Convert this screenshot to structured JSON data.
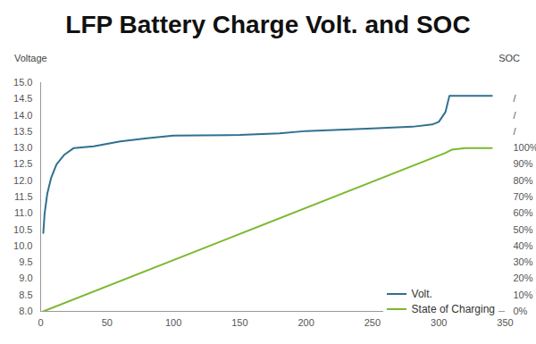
{
  "chart_data": {
    "type": "line",
    "title": "LFP Battery Charge Volt. and SOC",
    "y_label": "Voltage",
    "y2_label": "SOC",
    "xlim": [
      0,
      350
    ],
    "xticks": [
      0,
      50,
      100,
      150,
      200,
      250,
      300,
      350
    ],
    "ylim": [
      8,
      15
    ],
    "yticks": [
      {
        "value": 8,
        "label": "8.0"
      },
      {
        "value": 8.5,
        "label": "8.5"
      },
      {
        "value": 9,
        "label": "9.0"
      },
      {
        "value": 9.5,
        "label": "9.5"
      },
      {
        "value": 10,
        "label": "10.0"
      },
      {
        "value": 10.5,
        "label": "10.5"
      },
      {
        "value": 11,
        "label": "11.0"
      },
      {
        "value": 11.5,
        "label": "11.5"
      },
      {
        "value": 12,
        "label": "12.0"
      },
      {
        "value": 12.5,
        "label": "12.5"
      },
      {
        "value": 13,
        "label": "13.0"
      },
      {
        "value": 13.5,
        "label": "13.5"
      },
      {
        "value": 14,
        "label": "14.0"
      },
      {
        "value": 14.5,
        "label": "14.5"
      },
      {
        "value": 15,
        "label": "15.0"
      }
    ],
    "y2lim": [
      0,
      140
    ],
    "y2ticks": [
      {
        "value": 0,
        "label": "0%"
      },
      {
        "value": 10,
        "label": "10%"
      },
      {
        "value": 20,
        "label": "20%"
      },
      {
        "value": 30,
        "label": "30%"
      },
      {
        "value": 40,
        "label": "40%"
      },
      {
        "value": 50,
        "label": "50%"
      },
      {
        "value": 60,
        "label": "60%"
      },
      {
        "value": 70,
        "label": "70%"
      },
      {
        "value": 80,
        "label": "80%"
      },
      {
        "value": 90,
        "label": "90%"
      },
      {
        "value": 100,
        "label": "100%"
      },
      {
        "value": 110,
        "label": "/"
      },
      {
        "value": 120,
        "label": "/"
      },
      {
        "value": 130,
        "label": "/"
      }
    ],
    "grid": false,
    "legend": "bottom-right",
    "series": [
      {
        "name": "Volt.",
        "color": "#31708f",
        "x": [
          2,
          3,
          5,
          8,
          12,
          18,
          25,
          40,
          60,
          80,
          100,
          150,
          180,
          200,
          250,
          280,
          295,
          300,
          305,
          308,
          340
        ],
        "values": [
          10.4,
          11.0,
          11.6,
          12.1,
          12.5,
          12.8,
          13.0,
          13.05,
          13.2,
          13.3,
          13.38,
          13.4,
          13.45,
          13.52,
          13.6,
          13.65,
          13.72,
          13.8,
          14.1,
          14.6,
          14.6
        ]
      },
      {
        "name": "State of Charging",
        "color": "#7cb82f",
        "axis": "y2",
        "x": [
          2,
          305,
          310,
          320,
          340
        ],
        "values": [
          0,
          97,
          99,
          100,
          100
        ]
      }
    ]
  }
}
